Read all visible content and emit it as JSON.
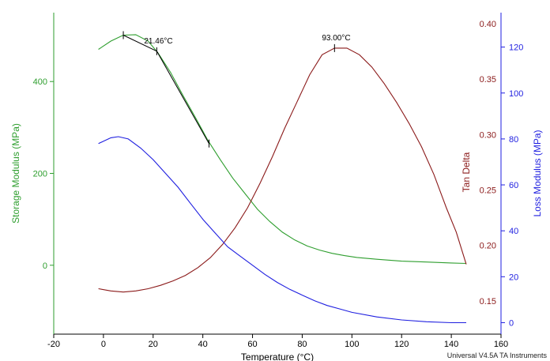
{
  "chart_data": {
    "type": "line",
    "x_axis": {
      "label": "Temperature (°C)",
      "range": [
        -20,
        160
      ],
      "ticks": [
        -20,
        0,
        20,
        40,
        60,
        80,
        100,
        120,
        140,
        160
      ]
    },
    "axes": {
      "storage": {
        "label": "Storage Modulus (MPa)",
        "color": "#2e9e2e",
        "range": [
          -150,
          550
        ],
        "ticks": [
          0,
          200,
          400
        ]
      },
      "tan_delta": {
        "label": "Tan Delta",
        "color": "#8b1a1a",
        "range": [
          0.12,
          0.41
        ],
        "ticks": [
          0.15,
          0.2,
          0.25,
          0.3,
          0.35,
          0.4
        ],
        "tick_labels": [
          "0.15",
          "0.20",
          "0.25",
          "0.30",
          "0.35",
          "0.40"
        ]
      },
      "loss": {
        "label": "Loss Modulus (MPa)",
        "color": "#1f1fe0",
        "range": [
          -5,
          135
        ],
        "ticks": [
          0,
          20,
          40,
          60,
          80,
          100,
          120
        ]
      }
    },
    "series": [
      {
        "axis": "storage",
        "color": "#2e9e2e",
        "points": [
          [
            -2,
            470
          ],
          [
            3,
            488
          ],
          [
            8,
            501
          ],
          [
            13,
            502
          ],
          [
            18,
            488
          ],
          [
            22,
            462
          ],
          [
            27,
            420
          ],
          [
            32,
            370
          ],
          [
            37,
            322
          ],
          [
            42,
            272
          ],
          [
            47,
            230
          ],
          [
            52,
            190
          ],
          [
            57,
            156
          ],
          [
            62,
            122
          ],
          [
            67,
            95
          ],
          [
            72,
            72
          ],
          [
            77,
            55
          ],
          [
            82,
            42
          ],
          [
            87,
            33
          ],
          [
            92,
            26
          ],
          [
            97,
            21
          ],
          [
            102,
            17
          ],
          [
            110,
            13
          ],
          [
            120,
            9
          ],
          [
            130,
            7
          ],
          [
            140,
            5
          ],
          [
            146,
            4
          ]
        ]
      },
      {
        "axis": "tan_delta",
        "color": "#8b1a1a",
        "points": [
          [
            -2,
            0.161
          ],
          [
            3,
            0.159
          ],
          [
            8,
            0.158
          ],
          [
            13,
            0.159
          ],
          [
            18,
            0.161
          ],
          [
            23,
            0.164
          ],
          [
            28,
            0.168
          ],
          [
            33,
            0.173
          ],
          [
            38,
            0.18
          ],
          [
            43,
            0.189
          ],
          [
            48,
            0.201
          ],
          [
            53,
            0.216
          ],
          [
            58,
            0.234
          ],
          [
            63,
            0.256
          ],
          [
            68,
            0.28
          ],
          [
            73,
            0.306
          ],
          [
            78,
            0.33
          ],
          [
            83,
            0.354
          ],
          [
            88,
            0.372
          ],
          [
            93,
            0.378
          ],
          [
            98,
            0.378
          ],
          [
            103,
            0.372
          ],
          [
            108,
            0.361
          ],
          [
            113,
            0.346
          ],
          [
            118,
            0.329
          ],
          [
            123,
            0.31
          ],
          [
            128,
            0.289
          ],
          [
            133,
            0.264
          ],
          [
            138,
            0.234
          ],
          [
            142,
            0.212
          ],
          [
            146,
            0.183
          ]
        ]
      },
      {
        "axis": "loss",
        "color": "#1f1fe0",
        "points": [
          [
            -2,
            78
          ],
          [
            3,
            80.5
          ],
          [
            6,
            81
          ],
          [
            10,
            80
          ],
          [
            15,
            76
          ],
          [
            20,
            71
          ],
          [
            25,
            65
          ],
          [
            30,
            59
          ],
          [
            35,
            52
          ],
          [
            40,
            45
          ],
          [
            45,
            39
          ],
          [
            50,
            33
          ],
          [
            55,
            29
          ],
          [
            60,
            25
          ],
          [
            65,
            21
          ],
          [
            70,
            17.5
          ],
          [
            75,
            14.5
          ],
          [
            80,
            12
          ],
          [
            85,
            9.5
          ],
          [
            90,
            7.5
          ],
          [
            95,
            6
          ],
          [
            100,
            4.5
          ],
          [
            110,
            2.5
          ],
          [
            120,
            1.2
          ],
          [
            130,
            0.4
          ],
          [
            140,
            0
          ],
          [
            146,
            0
          ]
        ]
      }
    ],
    "tangent_lines": [
      {
        "axis": "storage",
        "points": [
          [
            8,
            501
          ],
          [
            21.46,
            466
          ]
        ]
      },
      {
        "axis": "storage",
        "points": [
          [
            21.46,
            466
          ],
          [
            42.5,
            265
          ]
        ]
      }
    ],
    "markers": [
      {
        "axis": "storage",
        "x": 8,
        "y": 501
      },
      {
        "axis": "storage",
        "x": 21.46,
        "y": 466
      },
      {
        "axis": "storage",
        "x": 42.5,
        "y": 265
      },
      {
        "axis": "tan_delta",
        "x": 93,
        "y": 0.378
      }
    ],
    "annotations": [
      {
        "text": "21.46°C",
        "x": 21.46,
        "y": 466,
        "axis": "storage"
      },
      {
        "text": "93.00°C",
        "x": 93,
        "y": 0.378,
        "axis": "tan_delta"
      }
    ],
    "grid": false,
    "footer": "Universal V4.5A TA Instruments"
  }
}
